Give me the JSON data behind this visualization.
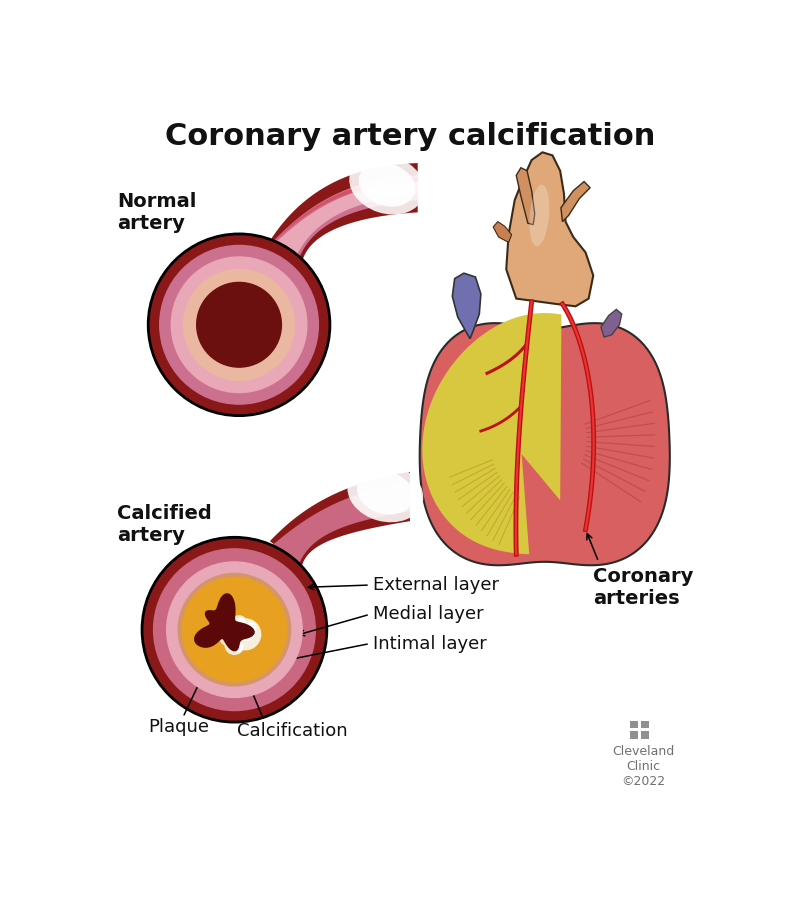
{
  "title": "Coronary artery calcification",
  "title_fontsize": 22,
  "title_fontweight": "bold",
  "background_color": "#ffffff",
  "label_normal_artery": "Normal\nartery",
  "label_calcified_artery": "Calcified\nartery",
  "label_external": "External layer",
  "label_medial": "Medial layer",
  "label_intimal": "Intimal layer",
  "label_plaque": "Plaque",
  "label_calcification": "Calcification",
  "label_coronary": "Coronary\narteries",
  "label_cleveland": "Cleveland\nClinic\n©2022",
  "annotation_fontsize": 13,
  "text_color": "#111111",
  "gray_color": "#808080"
}
